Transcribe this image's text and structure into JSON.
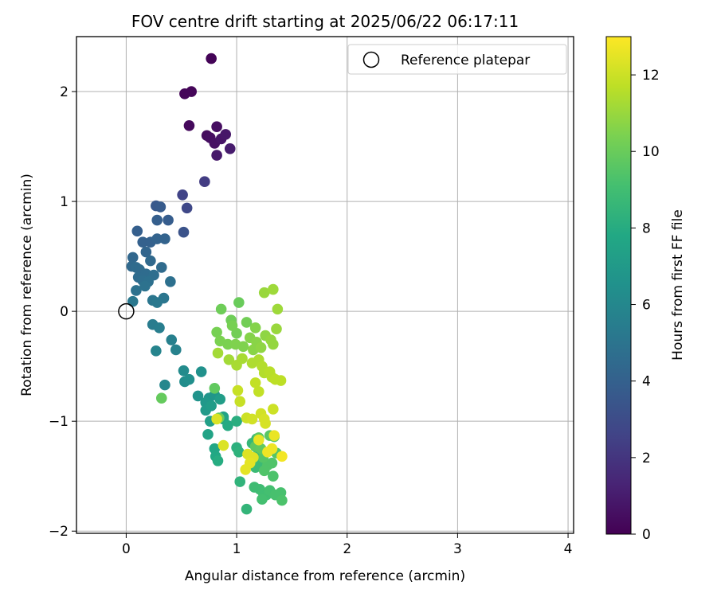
{
  "chart_data": {
    "type": "scatter",
    "title": "FOV centre drift starting at 2025/06/22 06:17:11",
    "xlabel": "Angular distance from reference (arcmin)",
    "ylabel": "Rotation from reference (arcmin)",
    "xlim": [
      -0.45,
      4.05
    ],
    "ylim": [
      -2.02,
      2.5
    ],
    "xticks": [
      0,
      1,
      2,
      3,
      4
    ],
    "yticks": [
      -2,
      -1,
      0,
      1,
      2
    ],
    "grid": true,
    "colormap": "viridis",
    "colorbar": {
      "label": "Hours from first FF file",
      "min": 0,
      "max": 13,
      "ticks": [
        0,
        2,
        4,
        6,
        8,
        10,
        12
      ]
    },
    "legend": {
      "placement": "top-right",
      "entries": [
        "Reference platepar"
      ]
    },
    "reference_point": {
      "x": 0,
      "y": 0
    },
    "points": [
      [
        0.77,
        2.3,
        0.1
      ],
      [
        0.53,
        1.98,
        0.2
      ],
      [
        0.59,
        2.0,
        0.2
      ],
      [
        0.57,
        1.69,
        0.3
      ],
      [
        0.73,
        1.6,
        0.4
      ],
      [
        0.76,
        1.58,
        0.5
      ],
      [
        0.82,
        1.68,
        0.5
      ],
      [
        0.8,
        1.53,
        0.6
      ],
      [
        0.86,
        1.57,
        0.7
      ],
      [
        0.9,
        1.61,
        0.8
      ],
      [
        0.82,
        1.42,
        0.9
      ],
      [
        0.94,
        1.48,
        1.0
      ],
      [
        0.71,
        1.18,
        2.3
      ],
      [
        0.51,
        1.06,
        2.6
      ],
      [
        0.55,
        0.94,
        2.8
      ],
      [
        0.52,
        0.72,
        3.3
      ],
      [
        0.27,
        0.96,
        3.6
      ],
      [
        0.31,
        0.95,
        3.7
      ],
      [
        0.38,
        0.83,
        3.8
      ],
      [
        0.28,
        0.83,
        3.9
      ],
      [
        0.1,
        0.73,
        3.9
      ],
      [
        0.15,
        0.63,
        4.0
      ],
      [
        0.22,
        0.63,
        4.0
      ],
      [
        0.28,
        0.66,
        4.1
      ],
      [
        0.35,
        0.66,
        4.1
      ],
      [
        0.18,
        0.54,
        4.2
      ],
      [
        0.06,
        0.49,
        4.3
      ],
      [
        0.22,
        0.46,
        4.4
      ],
      [
        0.05,
        0.41,
        4.4
      ],
      [
        0.09,
        0.4,
        4.5
      ],
      [
        0.12,
        0.38,
        4.5
      ],
      [
        0.32,
        0.4,
        4.5
      ],
      [
        0.18,
        0.34,
        4.6
      ],
      [
        0.11,
        0.31,
        4.6
      ],
      [
        0.25,
        0.33,
        4.7
      ],
      [
        0.15,
        0.28,
        4.7
      ],
      [
        0.2,
        0.27,
        4.8
      ],
      [
        0.4,
        0.27,
        4.8
      ],
      [
        0.17,
        0.23,
        4.9
      ],
      [
        0.09,
        0.19,
        4.9
      ],
      [
        0.24,
        0.1,
        5.1
      ],
      [
        0.34,
        0.12,
        5.1
      ],
      [
        0.28,
        0.08,
        5.2
      ],
      [
        0.06,
        0.09,
        5.2
      ],
      [
        0.24,
        -0.12,
        5.4
      ],
      [
        0.3,
        -0.15,
        5.5
      ],
      [
        0.41,
        -0.26,
        5.6
      ],
      [
        0.45,
        -0.35,
        5.7
      ],
      [
        0.27,
        -0.36,
        5.8
      ],
      [
        0.35,
        -0.67,
        6.0
      ],
      [
        0.52,
        -0.54,
        6.2
      ],
      [
        0.53,
        -0.64,
        6.3
      ],
      [
        0.57,
        -0.62,
        6.4
      ],
      [
        0.68,
        -0.55,
        6.5
      ],
      [
        0.65,
        -0.77,
        6.6
      ],
      [
        0.75,
        -0.79,
        6.7
      ],
      [
        0.8,
        -0.76,
        6.8
      ],
      [
        0.72,
        -0.83,
        6.9
      ],
      [
        0.72,
        -0.9,
        7.0
      ],
      [
        0.77,
        -0.86,
        7.1
      ],
      [
        0.85,
        -0.8,
        7.2
      ],
      [
        0.76,
        -1.0,
        7.3
      ],
      [
        0.88,
        -0.96,
        7.4
      ],
      [
        0.74,
        -1.12,
        7.5
      ],
      [
        0.88,
        -0.98,
        7.6
      ],
      [
        0.8,
        -1.25,
        7.7
      ],
      [
        0.81,
        -1.32,
        7.8
      ],
      [
        0.92,
        -1.04,
        7.9
      ],
      [
        0.83,
        -1.36,
        8.0
      ],
      [
        1.0,
        -1.0,
        8.1
      ],
      [
        1.0,
        -1.24,
        8.2
      ],
      [
        1.02,
        -1.28,
        8.3
      ],
      [
        1.03,
        -1.55,
        8.4
      ],
      [
        1.09,
        -1.8,
        8.5
      ],
      [
        1.14,
        -1.2,
        8.6
      ],
      [
        1.18,
        -1.16,
        8.7
      ],
      [
        1.2,
        -1.27,
        8.7
      ],
      [
        1.17,
        -1.42,
        8.8
      ],
      [
        1.2,
        -1.38,
        8.8
      ],
      [
        1.16,
        -1.6,
        8.9
      ],
      [
        1.21,
        -1.62,
        8.9
      ],
      [
        1.24,
        -1.65,
        9.0
      ],
      [
        1.27,
        -1.67,
        9.0
      ],
      [
        1.23,
        -1.71,
        9.1
      ],
      [
        1.3,
        -1.63,
        9.1
      ],
      [
        1.35,
        -1.67,
        9.2
      ],
      [
        1.4,
        -1.65,
        9.2
      ],
      [
        1.41,
        -1.72,
        9.3
      ],
      [
        1.33,
        -1.5,
        9.3
      ],
      [
        1.25,
        -1.45,
        9.4
      ],
      [
        1.28,
        -1.4,
        9.4
      ],
      [
        1.32,
        -1.38,
        9.4
      ],
      [
        1.36,
        -1.29,
        9.5
      ],
      [
        1.24,
        -1.33,
        9.5
      ],
      [
        1.3,
        -1.13,
        9.6
      ],
      [
        1.34,
        -1.14,
        9.6
      ],
      [
        1.2,
        -1.15,
        9.7
      ],
      [
        1.17,
        -1.23,
        9.7
      ],
      [
        1.22,
        -1.25,
        9.8
      ],
      [
        0.8,
        -0.7,
        9.8
      ],
      [
        0.32,
        -0.79,
        9.9
      ],
      [
        0.84,
        -0.97,
        9.9
      ],
      [
        1.02,
        0.08,
        10.0
      ],
      [
        0.86,
        0.02,
        10.1
      ],
      [
        0.95,
        -0.08,
        10.1
      ],
      [
        1.09,
        -0.1,
        10.2
      ],
      [
        1.0,
        -0.2,
        10.2
      ],
      [
        0.96,
        -0.13,
        10.3
      ],
      [
        0.82,
        -0.19,
        10.3
      ],
      [
        0.92,
        -0.3,
        10.4
      ],
      [
        0.85,
        -0.27,
        10.4
      ],
      [
        0.99,
        -0.3,
        10.5
      ],
      [
        1.06,
        -0.32,
        10.5
      ],
      [
        1.12,
        -0.24,
        10.6
      ],
      [
        1.17,
        -0.15,
        10.6
      ],
      [
        1.18,
        -0.28,
        10.7
      ],
      [
        1.15,
        -0.35,
        10.7
      ],
      [
        1.22,
        -0.33,
        10.8
      ],
      [
        1.26,
        -0.22,
        10.8
      ],
      [
        1.31,
        -0.26,
        10.9
      ],
      [
        1.33,
        -0.3,
        10.9
      ],
      [
        1.36,
        -0.16,
        11.0
      ],
      [
        1.25,
        0.17,
        11.0
      ],
      [
        1.33,
        0.2,
        11.1
      ],
      [
        1.37,
        0.02,
        11.1
      ],
      [
        0.83,
        -0.38,
        11.2
      ],
      [
        0.93,
        -0.44,
        11.2
      ],
      [
        1.0,
        -0.49,
        11.3
      ],
      [
        1.05,
        -0.43,
        11.3
      ],
      [
        1.14,
        -0.47,
        11.4
      ],
      [
        1.2,
        -0.44,
        11.4
      ],
      [
        1.23,
        -0.5,
        11.5
      ],
      [
        1.25,
        -0.56,
        11.5
      ],
      [
        1.3,
        -0.55,
        11.6
      ],
      [
        1.32,
        -0.6,
        11.6
      ],
      [
        1.35,
        -0.62,
        11.7
      ],
      [
        1.4,
        -0.63,
        11.7
      ],
      [
        1.17,
        -0.65,
        11.8
      ],
      [
        1.2,
        -0.73,
        11.8
      ],
      [
        1.01,
        -0.72,
        11.9
      ],
      [
        1.03,
        -0.82,
        11.9
      ],
      [
        1.33,
        -0.89,
        12.0
      ],
      [
        1.09,
        -0.97,
        12.0
      ],
      [
        1.14,
        -0.98,
        12.1
      ],
      [
        1.22,
        -0.93,
        12.1
      ],
      [
        1.25,
        -0.98,
        12.2
      ],
      [
        1.26,
        -1.02,
        12.2
      ],
      [
        0.82,
        -0.98,
        12.3
      ],
      [
        0.88,
        -1.22,
        12.3
      ],
      [
        1.1,
        -1.3,
        12.4
      ],
      [
        1.15,
        -1.33,
        12.4
      ],
      [
        1.12,
        -1.38,
        12.5
      ],
      [
        1.08,
        -1.44,
        12.5
      ],
      [
        1.2,
        -1.17,
        12.6
      ],
      [
        1.34,
        -1.13,
        12.6
      ],
      [
        1.32,
        -1.25,
        12.7
      ],
      [
        1.28,
        -1.28,
        12.7
      ],
      [
        1.41,
        -1.32,
        12.8
      ]
    ]
  }
}
